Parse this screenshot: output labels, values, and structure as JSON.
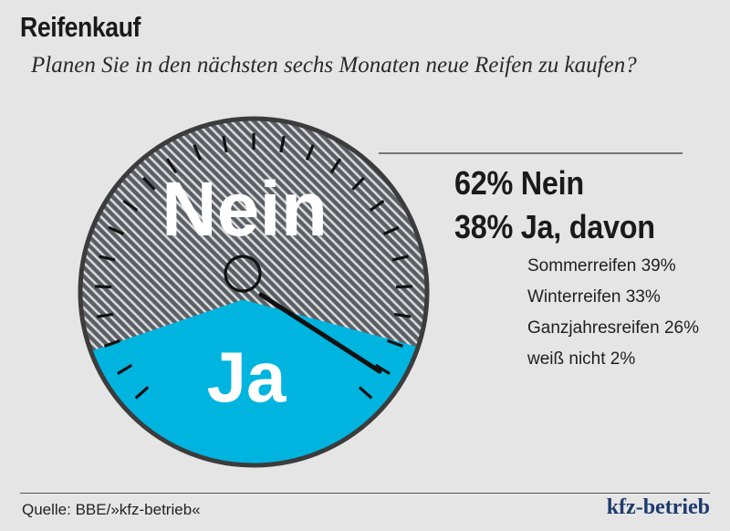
{
  "title": "Reifenkauf",
  "subtitle": "Planen Sie in den nächsten sechs Monaten neue Reifen zu kaufen?",
  "chart_data": {
    "type": "pie",
    "categories": [
      "Nein",
      "Ja"
    ],
    "values": [
      62,
      38
    ],
    "slice_labels": [
      "Nein",
      "Ja"
    ],
    "colors": {
      "Nein": "#4a4f57",
      "Ja": "#00b4e0"
    },
    "breakdown": {
      "parent": "Ja",
      "items": [
        {
          "label": "Sommerreifen",
          "value": 39
        },
        {
          "label": "Winterreifen",
          "value": 33
        },
        {
          "label": "Ganzjahresreifen",
          "value": 26
        },
        {
          "label": "weiß nicht",
          "value": 2
        }
      ]
    }
  },
  "legend": {
    "line1": "62% Nein",
    "line2": "38% Ja, davon",
    "items": [
      "Sommerreifen 39%",
      "Winterreifen 33%",
      "Ganzjahresreifen 26%",
      "weiß nicht 2%"
    ]
  },
  "footer": {
    "source": "Quelle: BBE/»kfz-betrieb«",
    "logo": "kfz-betrieb"
  }
}
